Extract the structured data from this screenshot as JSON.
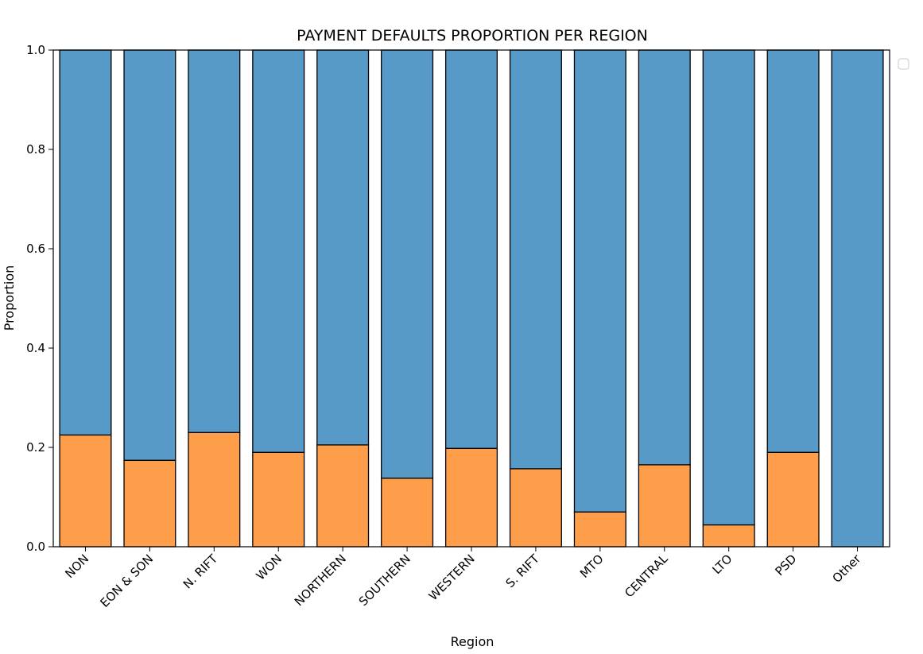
{
  "chart_data": {
    "type": "bar",
    "stacked": true,
    "normalized": true,
    "title": "PAYMENT DEFAULTS PROPORTION PER REGION",
    "xlabel": "Region",
    "ylabel": "Proportion",
    "ylim": [
      0,
      1.0
    ],
    "yticks": [
      "0.0",
      "0.2",
      "0.4",
      "0.6",
      "0.8",
      "1.0"
    ],
    "grid": false,
    "legend": {
      "placement": "top-right",
      "entries": []
    },
    "categories": [
      "NON",
      "EON & SON",
      "N. RIFT",
      "WON",
      "NORTHERN",
      "SOUTHERN",
      "WESTERN",
      "S. RIFT",
      "MTO",
      "CENTRAL",
      "LTO",
      "PSD",
      "Other"
    ],
    "series": [
      {
        "color": "#ff9e4a",
        "values": [
          0.225,
          0.174,
          0.23,
          0.19,
          0.205,
          0.138,
          0.198,
          0.157,
          0.07,
          0.165,
          0.044,
          0.19,
          0.0
        ]
      },
      {
        "color": "#5799c7",
        "values": [
          0.775,
          0.826,
          0.77,
          0.81,
          0.795,
          0.862,
          0.802,
          0.843,
          0.93,
          0.835,
          0.956,
          0.81,
          1.0
        ]
      }
    ]
  }
}
